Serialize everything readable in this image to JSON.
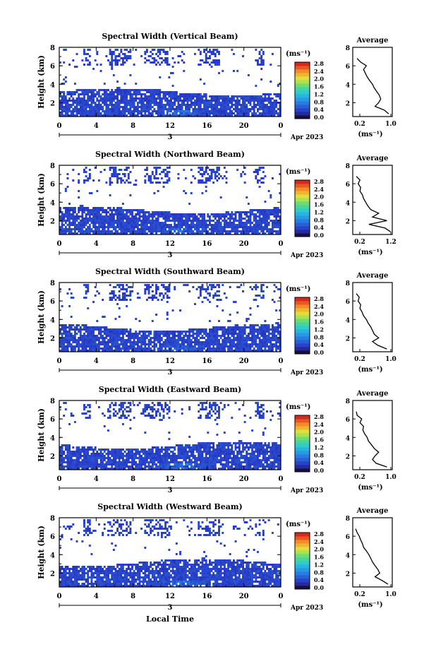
{
  "figure": {
    "date_label": "Apr 2023",
    "xlabel": "Local Time",
    "x_ticks": [
      "0",
      "4",
      "8",
      "12",
      "16",
      "20",
      "0"
    ],
    "day_marker": "3",
    "y_ticks": [
      "2",
      "4",
      "6",
      "8"
    ],
    "ylabel": "Height (km)",
    "unit_label": "(ms⁻¹)",
    "colorbar_ticks": [
      "0.0",
      "0.4",
      "0.8",
      "1.2",
      "1.6",
      "2.0",
      "2.4",
      "2.8"
    ],
    "avg_title": "Average",
    "avg_xlabel": "(ms⁻¹)"
  },
  "chart_data": [
    {
      "type": "heatmap",
      "title": "Spectral Width (Vertical Beam)",
      "xlim": [
        0,
        24
      ],
      "ylim": [
        0.5,
        8
      ],
      "avg_xticks": [
        "0.2",
        "1.0"
      ],
      "avg_profile": {
        "height_km": [
          0.8,
          1.2,
          1.6,
          2.0,
          2.4,
          2.8,
          3.2,
          3.6,
          4.0,
          4.4,
          4.8,
          5.2,
          5.6,
          6.0,
          6.4,
          6.8
        ],
        "value": [
          1.0,
          0.88,
          0.62,
          0.72,
          0.78,
          0.74,
          0.67,
          0.6,
          0.55,
          0.47,
          0.4,
          0.35,
          0.3,
          0.38,
          0.22,
          0.12
        ]
      }
    },
    {
      "type": "heatmap",
      "title": "Spectral Width (Northward Beam)",
      "xlim": [
        0,
        24
      ],
      "ylim": [
        0.5,
        8
      ],
      "avg_xticks": [
        "0.2",
        "1.2"
      ],
      "avg_profile": {
        "height_km": [
          0.8,
          1.2,
          1.6,
          2.0,
          2.4,
          2.8,
          3.2,
          3.6,
          4.0,
          4.4,
          4.8,
          5.2,
          5.6,
          6.0,
          6.4,
          6.8
        ],
        "value": [
          1.05,
          0.9,
          0.45,
          0.95,
          0.55,
          0.72,
          0.5,
          0.42,
          0.36,
          0.3,
          0.27,
          0.2,
          0.22,
          0.15,
          0.2,
          0.1
        ]
      }
    },
    {
      "type": "heatmap",
      "title": "Spectral Width (Southward Beam)",
      "xlim": [
        0,
        24
      ],
      "ylim": [
        0.5,
        8
      ],
      "avg_xticks": [
        "0.2",
        "1.0"
      ],
      "avg_profile": {
        "height_km": [
          0.8,
          1.2,
          1.6,
          2.0,
          2.4,
          2.8,
          3.2,
          3.6,
          4.0,
          4.4,
          4.8,
          5.2,
          5.6,
          6.0,
          6.4,
          6.8
        ],
        "value": [
          0.95,
          0.7,
          0.55,
          0.72,
          0.6,
          0.55,
          0.5,
          0.43,
          0.38,
          0.3,
          0.26,
          0.2,
          0.22,
          0.15,
          0.18,
          0.1
        ]
      }
    },
    {
      "type": "heatmap",
      "title": "Spectral Width (Eastward Beam)",
      "xlim": [
        0,
        24
      ],
      "ylim": [
        0.5,
        8
      ],
      "avg_xticks": [
        "0.2",
        "1.0"
      ],
      "avg_profile": {
        "height_km": [
          0.8,
          1.2,
          1.6,
          2.0,
          2.4,
          2.8,
          3.2,
          3.6,
          4.0,
          4.4,
          4.8,
          5.2,
          5.6,
          6.0,
          6.4,
          6.8
        ],
        "value": [
          0.95,
          0.65,
          0.55,
          0.62,
          0.72,
          0.6,
          0.52,
          0.44,
          0.4,
          0.33,
          0.28,
          0.3,
          0.2,
          0.25,
          0.12,
          0.1
        ]
      }
    },
    {
      "type": "heatmap",
      "title": "Spectral Width (Westward Beam)",
      "xlim": [
        0,
        24
      ],
      "ylim": [
        0.5,
        8
      ],
      "avg_xticks": [
        "0.2",
        "1.0"
      ],
      "avg_profile": {
        "height_km": [
          0.8,
          1.2,
          1.6,
          2.0,
          2.4,
          2.8,
          3.2,
          3.6,
          4.0,
          4.4,
          4.8,
          5.2,
          5.6,
          6.0,
          6.4,
          6.8
        ],
        "value": [
          0.98,
          0.82,
          0.62,
          0.75,
          0.7,
          0.62,
          0.55,
          0.5,
          0.45,
          0.38,
          0.3,
          0.27,
          0.22,
          0.18,
          0.12,
          0.08
        ]
      }
    }
  ]
}
